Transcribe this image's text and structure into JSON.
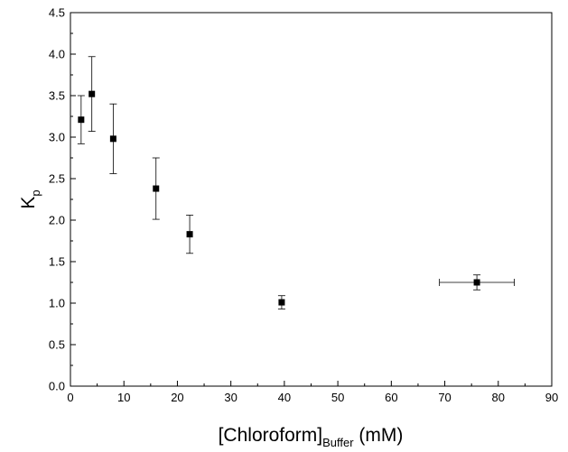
{
  "chart_data": {
    "type": "scatter",
    "title": "",
    "xlabel": {
      "main": "[Chloroform]",
      "subscript": "Buffer",
      "unit": " (mM)"
    },
    "ylabel": {
      "main": "K",
      "subscript": "p"
    },
    "xlim": [
      0,
      90
    ],
    "ylim": [
      0,
      4.5
    ],
    "x_ticks": [
      0,
      10,
      20,
      30,
      40,
      50,
      60,
      70,
      80,
      90
    ],
    "y_ticks": [
      0.0,
      0.5,
      1.0,
      1.5,
      2.0,
      2.5,
      3.0,
      3.5,
      4.0,
      4.5
    ],
    "x_tick_labels": [
      "0",
      "10",
      "20",
      "30",
      "40",
      "50",
      "60",
      "70",
      "80",
      "90"
    ],
    "y_tick_labels": [
      "0.0",
      "0.5",
      "1.0",
      "1.5",
      "2.0",
      "2.5",
      "3.0",
      "3.5",
      "4.0",
      "4.5"
    ],
    "grid": false,
    "series": [
      {
        "marker": "square",
        "color": "#000000",
        "points": [
          {
            "x": 2.0,
            "y": 3.21,
            "y_err": 0.29,
            "x_err": 0
          },
          {
            "x": 4.0,
            "y": 3.52,
            "y_err": 0.45,
            "x_err": 0
          },
          {
            "x": 8.0,
            "y": 2.98,
            "y_err": 0.42,
            "x_err": 0
          },
          {
            "x": 16.0,
            "y": 2.38,
            "y_err": 0.37,
            "x_err": 0
          },
          {
            "x": 22.3,
            "y": 1.83,
            "y_err": 0.23,
            "x_err": 0
          },
          {
            "x": 39.5,
            "y": 1.01,
            "y_err": 0.08,
            "x_err": 0
          },
          {
            "x": 76.0,
            "y": 1.25,
            "y_err": 0.09,
            "x_err": 7.0
          }
        ]
      }
    ]
  }
}
